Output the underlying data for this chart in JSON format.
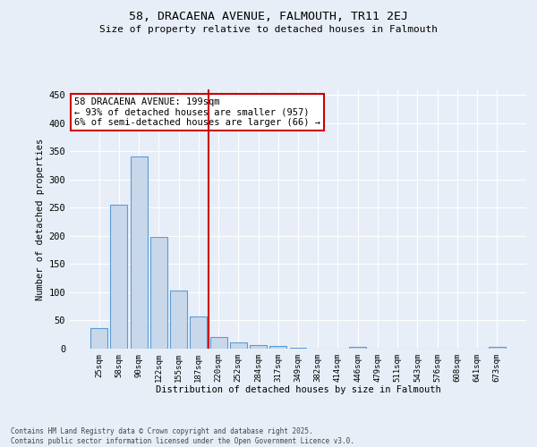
{
  "title_line1": "58, DRACAENA AVENUE, FALMOUTH, TR11 2EJ",
  "title_line2": "Size of property relative to detached houses in Falmouth",
  "xlabel": "Distribution of detached houses by size in Falmouth",
  "ylabel": "Number of detached properties",
  "bar_color": "#c8d8ea",
  "bar_edge_color": "#5b9bd5",
  "categories": [
    "25sqm",
    "58sqm",
    "90sqm",
    "122sqm",
    "155sqm",
    "187sqm",
    "220sqm",
    "252sqm",
    "284sqm",
    "317sqm",
    "349sqm",
    "382sqm",
    "414sqm",
    "446sqm",
    "479sqm",
    "511sqm",
    "543sqm",
    "576sqm",
    "608sqm",
    "641sqm",
    "673sqm"
  ],
  "values": [
    37,
    256,
    341,
    199,
    103,
    57,
    20,
    11,
    7,
    4,
    2,
    0,
    0,
    3,
    0,
    0,
    0,
    0,
    0,
    0,
    3
  ],
  "vline_x": 5.5,
  "vline_color": "#cc0000",
  "annotation_text": "58 DRACAENA AVENUE: 199sqm\n← 93% of detached houses are smaller (957)\n6% of semi-detached houses are larger (66) →",
  "annotation_box_color": "#ffffff",
  "annotation_box_edge": "#cc0000",
  "ylim": [
    0,
    460
  ],
  "yticks": [
    0,
    50,
    100,
    150,
    200,
    250,
    300,
    350,
    400,
    450
  ],
  "background_color": "#e8eef8",
  "grid_color": "#ffffff",
  "footer_line1": "Contains HM Land Registry data © Crown copyright and database right 2025.",
  "footer_line2": "Contains public sector information licensed under the Open Government Licence v3.0."
}
